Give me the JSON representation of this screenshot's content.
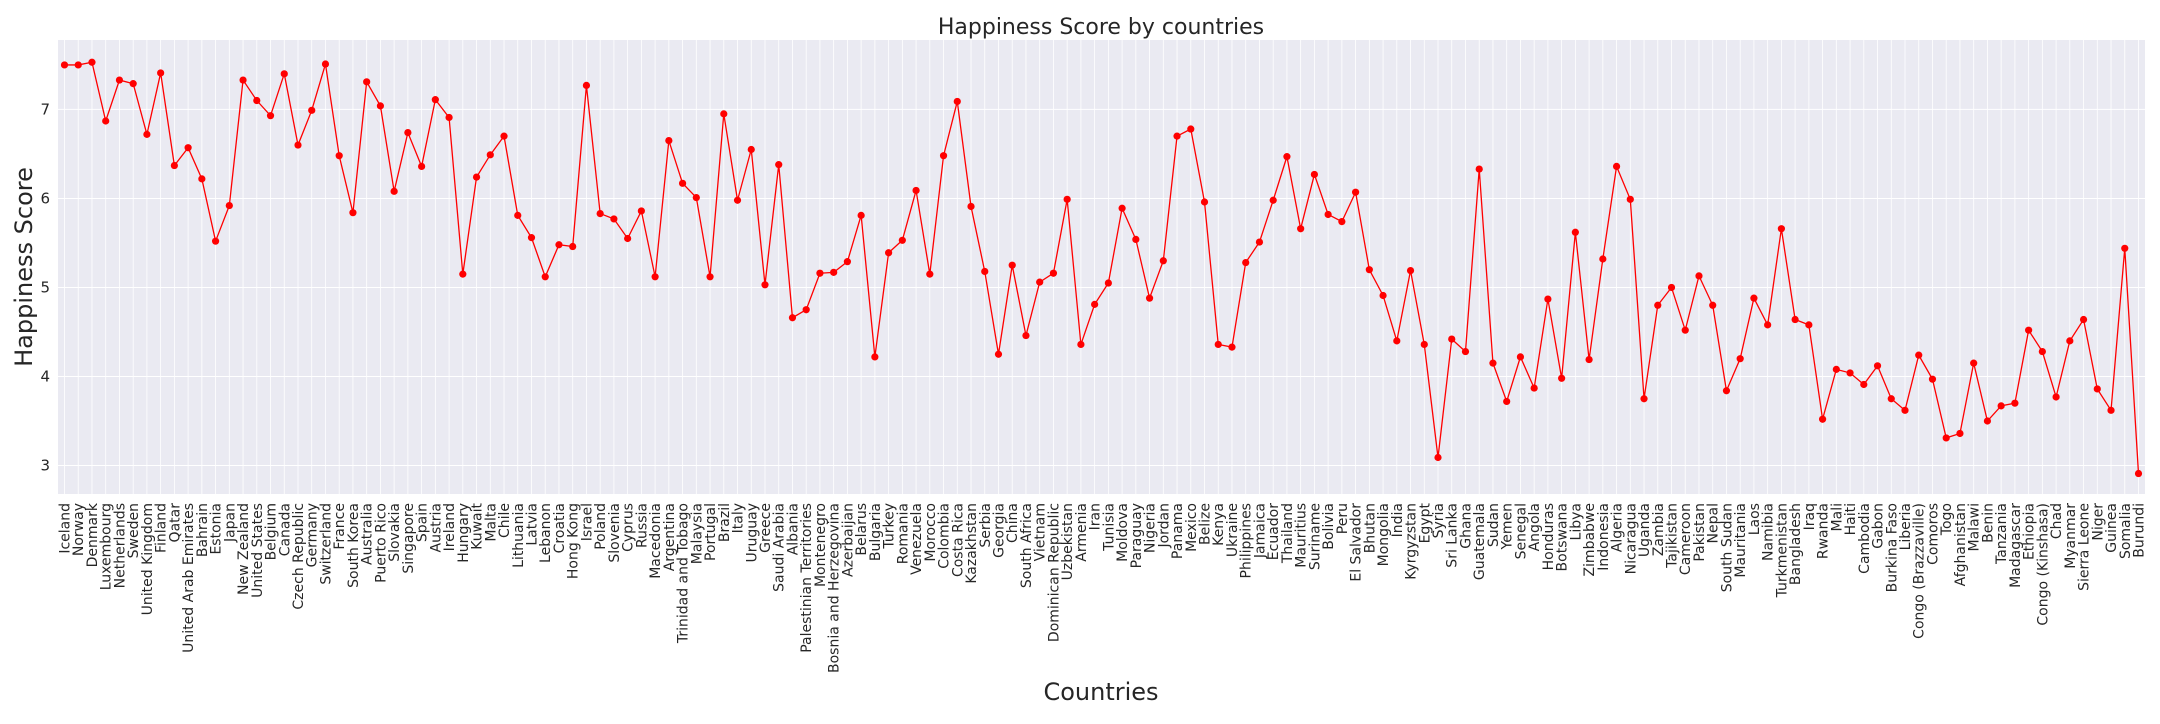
{
  "chart_data": {
    "type": "line",
    "title": "Happiness Score by countries",
    "xlabel": "Countries",
    "ylabel": "Happiness Score",
    "ylim": [
      2.68,
      7.78
    ],
    "yticks": [
      3,
      4,
      5,
      6,
      7
    ],
    "grid": true,
    "colors": {
      "line": "#ff0000",
      "marker": "#ff0000",
      "plot_bg": "#eaeaf2",
      "grid": "#ffffff"
    },
    "categories": [
      "Iceland",
      "Norway",
      "Denmark",
      "Luxembourg",
      "Netherlands",
      "Sweden",
      "United Kingdom",
      "Finland",
      "Qatar",
      "United Arab Emirates",
      "Bahrain",
      "Estonia",
      "Japan",
      "New Zealand",
      "United States",
      "Belgium",
      "Canada",
      "Czech Republic",
      "Germany",
      "Switzerland",
      "France",
      "South Korea",
      "Australia",
      "Puerto Rico",
      "Slovakia",
      "Singapore",
      "Spain",
      "Austria",
      "Ireland",
      "Hungary",
      "Kuwait",
      "Malta",
      "Chile",
      "Lithuania",
      "Latvia",
      "Lebanon",
      "Croatia",
      "Hong Kong",
      "Israel",
      "Poland",
      "Slovenia",
      "Cyprus",
      "Russia",
      "Macedonia",
      "Argentina",
      "Trinidad and Tobago",
      "Malaysia",
      "Portugal",
      "Brazil",
      "Italy",
      "Uruguay",
      "Greece",
      "Saudi Arabia",
      "Albania",
      "Palestinian Territories",
      "Montenegro",
      "Bosnia and Herzegovina",
      "Azerbaijan",
      "Belarus",
      "Bulgaria",
      "Turkey",
      "Romania",
      "Venezuela",
      "Morocco",
      "Colombia",
      "Costa Rica",
      "Kazakhstan",
      "Serbia",
      "Georgia",
      "China",
      "South Africa",
      "Vietnam",
      "Dominican Republic",
      "Uzbekistan",
      "Armenia",
      "Iran",
      "Tunisia",
      "Moldova",
      "Paraguay",
      "Nigeria",
      "Jordan",
      "Panama",
      "Mexico",
      "Belize",
      "Kenya",
      "Ukraine",
      "Philippines",
      "Jamaica",
      "Ecuador",
      "Thailand",
      "Mauritius",
      "Suriname",
      "Bolivia",
      "Peru",
      "El Salvador",
      "Bhutan",
      "Mongolia",
      "India",
      "Kyrgyzstan",
      "Egypt",
      "Syria",
      "Sri Lanka",
      "Ghana",
      "Guatemala",
      "Sudan",
      "Yemen",
      "Senegal",
      "Angola",
      "Honduras",
      "Botswana",
      "Libya",
      "Zimbabwe",
      "Indonesia",
      "Algeria",
      "Nicaragua",
      "Uganda",
      "Zambia",
      "Tajikistan",
      "Cameroon",
      "Pakistan",
      "Nepal",
      "South Sudan",
      "Mauritania",
      "Laos",
      "Namibia",
      "Turkmenistan",
      "Bangladesh",
      "Iraq",
      "Rwanda",
      "Mali",
      "Haiti",
      "Cambodia",
      "Gabon",
      "Burkina Faso",
      "Liberia",
      "Congo (Brazzaville)",
      "Comoros",
      "Togo",
      "Afghanistan",
      "Malawi",
      "Benin",
      "Tanzania",
      "Madagascar",
      "Ethiopia",
      "Congo (Kinshasa)",
      "Chad",
      "Myanmar",
      "Sierra Leone",
      "Niger",
      "Guinea",
      "Somalia",
      "Burundi"
    ],
    "values": [
      7.5,
      7.5,
      7.53,
      6.87,
      7.33,
      7.29,
      6.72,
      7.41,
      6.37,
      6.57,
      6.22,
      5.52,
      5.92,
      7.33,
      7.1,
      6.93,
      7.4,
      6.6,
      6.99,
      7.51,
      6.48,
      5.84,
      7.31,
      7.04,
      6.08,
      6.74,
      6.36,
      7.11,
      6.91,
      5.15,
      6.24,
      6.49,
      6.7,
      5.81,
      5.56,
      5.12,
      5.48,
      5.46,
      7.27,
      5.83,
      5.77,
      5.55,
      5.86,
      5.12,
      6.65,
      6.17,
      6.01,
      5.12,
      6.95,
      5.98,
      6.55,
      5.03,
      6.38,
      4.66,
      4.75,
      5.16,
      5.17,
      5.29,
      5.81,
      4.22,
      5.39,
      5.53,
      6.09,
      5.15,
      6.48,
      7.09,
      5.91,
      5.18,
      4.25,
      5.25,
      4.46,
      5.06,
      5.16,
      5.99,
      4.36,
      4.81,
      5.05,
      5.89,
      5.54,
      4.88,
      5.3,
      6.7,
      6.78,
      5.96,
      4.36,
      4.33,
      5.28,
      5.51,
      5.98,
      6.47,
      5.66,
      6.27,
      5.82,
      5.74,
      6.07,
      5.2,
      4.91,
      4.4,
      5.19,
      4.36,
      3.09,
      4.42,
      4.28,
      6.33,
      4.15,
      3.72,
      4.22,
      3.87,
      4.87,
      3.98,
      5.62,
      4.19,
      5.32,
      6.36,
      5.99,
      3.75,
      4.8,
      5.0,
      4.52,
      5.13,
      4.8,
      3.84,
      4.2,
      4.88,
      4.58,
      5.66,
      4.64,
      4.58,
      3.52,
      4.08,
      4.04,
      3.91,
      4.12,
      3.75,
      3.62,
      4.24,
      3.97,
      3.31,
      3.36,
      4.15,
      3.5,
      3.67,
      3.7,
      4.52,
      4.28,
      3.77,
      4.4,
      4.64,
      3.86,
      3.62,
      5.44,
      2.91
    ]
  }
}
